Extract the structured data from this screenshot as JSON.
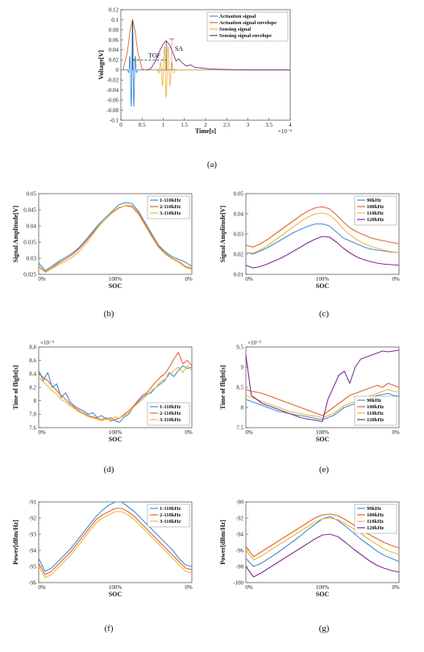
{
  "chart_data": [
    {
      "id": "a",
      "caption": "(a)",
      "type": "line",
      "xlabel": "Time[s]",
      "ylabel": "Voltage[V]",
      "xlim": [
        0,
        0.0004
      ],
      "ylim": [
        -0.1,
        0.12
      ],
      "x_ticks": [
        "0",
        "0.5",
        "1",
        "1.5",
        "2",
        "2.5",
        "3",
        "3.5",
        "4"
      ],
      "x_multiplier": "×10⁻⁴",
      "y_ticks": [
        "-0.1",
        "-0.08",
        "-0.06",
        "-0.04",
        "-0.02",
        "0",
        "0.02",
        "0.04",
        "0.06",
        "0.08",
        "0.1",
        "0.12"
      ],
      "legend_loc": "top-right",
      "annotations": [
        "TOF",
        "SA"
      ],
      "series": [
        {
          "name": "Actuation signal",
          "color": "#3a8fd8",
          "kind": "burst",
          "center": 2.75e-05,
          "width": 8e-06,
          "amp": 0.1,
          "freq": 150000
        },
        {
          "name": "Actuation signal envelope",
          "color": "#e0642a",
          "points": [
            [
              5e-06,
              0
            ],
            [
              1.5e-05,
              0.035
            ],
            [
              2.2e-05,
              0.08
            ],
            [
              2.75e-05,
              0.1
            ],
            [
              3.3e-05,
              0.08
            ],
            [
              4e-05,
              0.035
            ],
            [
              5e-05,
              0.002
            ],
            [
              6e-05,
              0
            ]
          ]
        },
        {
          "name": "Sensing signal",
          "color": "#f2b43c",
          "kind": "burst",
          "center": 0.000107,
          "width": 1.7e-05,
          "amp": 0.055,
          "freq": 110000
        },
        {
          "name": "Sensing signal envelope",
          "color": "#7b2d8e",
          "points": [
            [
              6e-05,
              0
            ],
            [
              7e-05,
              0.002
            ],
            [
              8e-05,
              0.015
            ],
            [
              9e-05,
              0.035
            ],
            [
              0.0001,
              0.052
            ],
            [
              0.000107,
              0.058
            ],
            [
              0.000115,
              0.05
            ],
            [
              0.000125,
              0.03
            ],
            [
              0.00013,
              0.018
            ],
            [
              0.000137,
              0.022
            ],
            [
              0.000145,
              0.014
            ],
            [
              0.000155,
              0.008
            ],
            [
              0.000165,
              0.01
            ],
            [
              0.000175,
              0.005
            ],
            [
              0.00019,
              0.004
            ],
            [
              0.00021,
              0.002
            ],
            [
              0.00025,
              0.001
            ],
            [
              0.0003,
              0
            ],
            [
              0.0004,
              0
            ]
          ]
        }
      ]
    },
    {
      "id": "b",
      "caption": "(b)",
      "type": "line",
      "xlabel": "SOC",
      "ylabel": "Signal Amplitude[V]",
      "ylim": [
        0.025,
        0.05
      ],
      "y_ticks": [
        "0.025",
        "0.03",
        "0.035",
        "0.04",
        "0.045",
        "0.05"
      ],
      "x_ticks": [
        "0%",
        "100%",
        "0%"
      ],
      "legend_loc": "top-right",
      "series": [
        {
          "name": "1-110kHz",
          "color": "#3a8fd8",
          "values": [
            0.0285,
            0.0262,
            0.0275,
            0.029,
            0.0302,
            0.0315,
            0.0332,
            0.0355,
            0.038,
            0.0405,
            0.0425,
            0.0445,
            0.0465,
            0.0472,
            0.047,
            0.0445,
            0.041,
            0.0375,
            0.034,
            0.032,
            0.0305,
            0.0297,
            0.0288,
            0.0275
          ]
        },
        {
          "name": "2-110kHz",
          "color": "#e0642a",
          "values": [
            0.0275,
            0.0258,
            0.027,
            0.0285,
            0.0297,
            0.031,
            0.0328,
            0.035,
            0.0375,
            0.04,
            0.042,
            0.044,
            0.0455,
            0.0463,
            0.0462,
            0.044,
            0.0405,
            0.037,
            0.0337,
            0.0315,
            0.03,
            0.029,
            0.0275,
            0.0268
          ]
        },
        {
          "name": "3-110kHz",
          "color": "#f2b43c",
          "values": [
            0.0272,
            0.0256,
            0.0268,
            0.028,
            0.029,
            0.0302,
            0.032,
            0.0343,
            0.037,
            0.0398,
            0.042,
            0.0442,
            0.0457,
            0.0462,
            0.0458,
            0.0435,
            0.04,
            0.0365,
            0.0333,
            0.0313,
            0.0298,
            0.0288,
            0.0272,
            0.0265
          ]
        }
      ]
    },
    {
      "id": "c",
      "caption": "(c)",
      "type": "line",
      "xlabel": "SOC",
      "ylabel": "Signal Amplitude[V]",
      "ylim": [
        0.01,
        0.05
      ],
      "y_ticks": [
        "0.01",
        "0.02",
        "0.03",
        "0.04",
        "0.05"
      ],
      "x_ticks": [
        "0%",
        "100%",
        "0%"
      ],
      "legend_loc": "top-right",
      "series": [
        {
          "name": "90kHz",
          "color": "#3a8fd8",
          "values": [
            0.021,
            0.02,
            0.0215,
            0.023,
            0.025,
            0.027,
            0.029,
            0.031,
            0.0325,
            0.034,
            0.035,
            0.035,
            0.034,
            0.031,
            0.028,
            0.0265,
            0.025,
            0.0235,
            0.0225,
            0.022,
            0.0215,
            0.021,
            0.0208
          ]
        },
        {
          "name": "100kHz",
          "color": "#e0642a",
          "values": [
            0.0245,
            0.0235,
            0.025,
            0.027,
            0.0295,
            0.032,
            0.0345,
            0.037,
            0.0395,
            0.0415,
            0.043,
            0.0435,
            0.0425,
            0.0395,
            0.036,
            0.033,
            0.031,
            0.0295,
            0.028,
            0.0272,
            0.0265,
            0.0258,
            0.0252
          ]
        },
        {
          "name": "110kHz",
          "color": "#f2b43c",
          "values": [
            0.021,
            0.0205,
            0.022,
            0.024,
            0.0265,
            0.029,
            0.0315,
            0.034,
            0.0365,
            0.0385,
            0.04,
            0.0405,
            0.0395,
            0.0365,
            0.0325,
            0.0295,
            0.027,
            0.0252,
            0.0238,
            0.0228,
            0.0218,
            0.0212,
            0.0207
          ]
        },
        {
          "name": "120kHz",
          "color": "#7b2d8e",
          "values": [
            0.0145,
            0.0132,
            0.0138,
            0.015,
            0.0165,
            0.018,
            0.0198,
            0.0218,
            0.0238,
            0.0258,
            0.0275,
            0.0288,
            0.0285,
            0.026,
            0.023,
            0.0205,
            0.0185,
            0.0172,
            0.0162,
            0.0155,
            0.015,
            0.0148,
            0.0145
          ]
        }
      ]
    },
    {
      "id": "d",
      "caption": "(d)",
      "type": "line",
      "xlabel": "SOC",
      "ylabel": "Time of flight[s]",
      "ylim": [
        7.6,
        8.8
      ],
      "y_ticks": [
        "7.6",
        "7.8",
        "8",
        "8.2",
        "8.4",
        "8.6",
        "8.8"
      ],
      "y_multiplier": "×10⁻⁵",
      "x_ticks": [
        "0%",
        "100%",
        "0%"
      ],
      "legend_loc": "bottom-right",
      "series": [
        {
          "name": "1-110kHz",
          "color": "#3a8fd8",
          "values": [
            8.45,
            8.3,
            8.42,
            8.2,
            8.25,
            8.05,
            8.12,
            7.98,
            7.92,
            7.88,
            7.85,
            7.8,
            7.82,
            7.75,
            7.78,
            7.72,
            7.75,
            7.7,
            7.68,
            7.76,
            7.8,
            7.9,
            7.98,
            8.05,
            8.1,
            8.12,
            8.2,
            8.25,
            8.3,
            8.42,
            8.36,
            8.45,
            8.52,
            8.48,
            8.5
          ]
        },
        {
          "name": "2-110kHz",
          "color": "#e0642a",
          "values": [
            8.4,
            8.35,
            8.3,
            8.22,
            8.15,
            8.08,
            8.02,
            7.95,
            7.9,
            7.85,
            7.82,
            7.78,
            7.76,
            7.74,
            7.72,
            7.75,
            7.7,
            7.72,
            7.74,
            7.8,
            7.85,
            7.92,
            8.0,
            8.08,
            8.12,
            8.2,
            8.28,
            8.35,
            8.4,
            8.5,
            8.62,
            8.72,
            8.55,
            8.6,
            8.52
          ]
        },
        {
          "name": "3-110kHz",
          "color": "#f2b43c",
          "values": [
            8.35,
            8.28,
            8.22,
            8.15,
            8.1,
            8.02,
            7.98,
            7.92,
            7.88,
            7.83,
            7.8,
            7.76,
            7.75,
            7.72,
            7.7,
            7.73,
            7.72,
            7.76,
            7.74,
            7.78,
            7.82,
            7.9,
            7.96,
            8.02,
            8.08,
            8.15,
            8.2,
            8.28,
            8.32,
            8.38,
            8.45,
            8.5,
            8.42,
            8.52,
            8.45
          ]
        }
      ]
    },
    {
      "id": "e",
      "caption": "(e)",
      "type": "line",
      "xlabel": "SOC",
      "ylabel": "Time of flight[s]",
      "ylim": [
        7.5,
        9.5
      ],
      "y_ticks": [
        "7.5",
        "8",
        "8.5",
        "9",
        "9.5"
      ],
      "y_multiplier": "×10⁻⁵",
      "x_ticks": [
        "0%",
        "100%",
        "0%"
      ],
      "legend_loc": "bottom-right",
      "series": [
        {
          "name": "90kHz",
          "color": "#3a8fd8",
          "values": [
            8.2,
            8.15,
            8.1,
            8.05,
            8.0,
            7.95,
            7.9,
            7.88,
            7.85,
            7.82,
            7.8,
            7.78,
            7.75,
            7.72,
            7.7,
            7.75,
            7.8,
            7.9,
            8.0,
            8.05,
            8.1,
            8.15,
            8.2,
            8.25,
            8.3,
            8.32,
            8.35,
            8.3,
            8.28
          ]
        },
        {
          "name": "100kHz",
          "color": "#e0642a",
          "values": [
            8.45,
            8.4,
            8.38,
            8.35,
            8.3,
            8.25,
            8.2,
            8.15,
            8.1,
            8.05,
            8.0,
            7.95,
            7.9,
            7.85,
            7.8,
            7.9,
            8.0,
            8.1,
            8.2,
            8.3,
            8.35,
            8.4,
            8.45,
            8.5,
            8.55,
            8.5,
            8.6,
            8.55,
            8.5
          ]
        },
        {
          "name": "110kHz",
          "color": "#f2b43c",
          "values": [
            8.3,
            8.25,
            8.2,
            8.15,
            8.1,
            8.05,
            8.0,
            7.95,
            7.9,
            7.88,
            7.85,
            7.82,
            7.8,
            7.78,
            7.75,
            7.8,
            7.85,
            7.95,
            8.05,
            8.1,
            8.15,
            8.2,
            8.25,
            8.3,
            8.35,
            8.4,
            8.45,
            8.4,
            8.38
          ]
        },
        {
          "name": "120kHz",
          "color": "#7b2d8e",
          "values": [
            9.3,
            8.3,
            8.2,
            8.1,
            8.05,
            8.0,
            7.95,
            7.9,
            7.85,
            7.8,
            7.75,
            7.72,
            7.7,
            7.68,
            7.65,
            8.2,
            8.5,
            8.8,
            8.9,
            8.6,
            9.0,
            9.2,
            9.25,
            9.3,
            9.35,
            9.4,
            9.38,
            9.4,
            9.42
          ]
        }
      ]
    },
    {
      "id": "f",
      "caption": "(f)",
      "type": "line",
      "xlabel": "SOC",
      "ylabel": "Power[dBm/Hz]",
      "ylim": [
        -96,
        -91
      ],
      "y_ticks": [
        "-96",
        "-95",
        "-94",
        "-93",
        "-92",
        "-91"
      ],
      "x_ticks": [
        "0%",
        "100%",
        "0%"
      ],
      "legend_loc": "top-right",
      "series": [
        {
          "name": "1-110kHz",
          "color": "#3a8fd8",
          "values": [
            -94.5,
            -95.3,
            -95.1,
            -94.7,
            -94.3,
            -93.9,
            -93.4,
            -92.9,
            -92.4,
            -91.9,
            -91.5,
            -91.2,
            -91.0,
            -91.0,
            -91.3,
            -91.6,
            -92.0,
            -92.4,
            -92.8,
            -93.2,
            -93.6,
            -94.0,
            -94.5,
            -94.9,
            -95.0
          ]
        },
        {
          "name": "2-110kHz",
          "color": "#e0642a",
          "values": [
            -94.8,
            -95.5,
            -95.3,
            -94.9,
            -94.5,
            -94.1,
            -93.6,
            -93.1,
            -92.6,
            -92.1,
            -91.8,
            -91.6,
            -91.4,
            -91.4,
            -91.6,
            -91.9,
            -92.3,
            -92.7,
            -93.1,
            -93.5,
            -93.9,
            -94.3,
            -94.7,
            -95.1,
            -95.2
          ]
        },
        {
          "name": "3-110kHz",
          "color": "#f2b43c",
          "values": [
            -95.0,
            -95.7,
            -95.5,
            -95.1,
            -94.7,
            -94.3,
            -93.8,
            -93.3,
            -92.8,
            -92.3,
            -92.0,
            -91.8,
            -91.6,
            -91.6,
            -91.8,
            -92.1,
            -92.5,
            -92.9,
            -93.3,
            -93.7,
            -94.1,
            -94.5,
            -94.9,
            -95.3,
            -95.4
          ]
        }
      ]
    },
    {
      "id": "g",
      "caption": "(g)",
      "type": "line",
      "xlabel": "SOC",
      "ylabel": "Power[dBm/Hz]",
      "ylim": [
        -100,
        -90
      ],
      "y_ticks": [
        "-100",
        "-98",
        "-96",
        "-94",
        "-92",
        "-90"
      ],
      "x_ticks": [
        "0%",
        "100%",
        "0%"
      ],
      "legend_loc": "top-right",
      "series": [
        {
          "name": "90kHz",
          "color": "#3a8fd8",
          "values": [
            -97.0,
            -98.0,
            -97.6,
            -97.0,
            -96.4,
            -95.7,
            -95.0,
            -94.3,
            -93.5,
            -92.8,
            -92.1,
            -91.8,
            -92.3,
            -93.0,
            -93.8,
            -94.6,
            -95.3,
            -96.0,
            -96.6,
            -97.0,
            -97.4
          ]
        },
        {
          "name": "100kHz",
          "color": "#e0642a",
          "values": [
            -95.5,
            -96.8,
            -96.2,
            -95.6,
            -95.0,
            -94.4,
            -93.8,
            -93.2,
            -92.6,
            -92.0,
            -91.6,
            -91.5,
            -91.7,
            -92.2,
            -92.8,
            -93.4,
            -94.0,
            -94.5,
            -95.0,
            -95.4,
            -95.7
          ]
        },
        {
          "name": "110kHz",
          "color": "#f2b43c",
          "values": [
            -96.0,
            -97.2,
            -96.7,
            -96.1,
            -95.5,
            -94.9,
            -94.3,
            -93.7,
            -93.1,
            -92.5,
            -92.1,
            -92.0,
            -92.2,
            -92.7,
            -93.3,
            -93.9,
            -94.6,
            -95.2,
            -95.8,
            -96.2,
            -96.5
          ]
        },
        {
          "name": "120kHz",
          "color": "#7b2d8e",
          "values": [
            -98.0,
            -99.3,
            -98.8,
            -98.2,
            -97.6,
            -97.0,
            -96.4,
            -95.8,
            -95.2,
            -94.6,
            -94.1,
            -94.0,
            -94.3,
            -95.0,
            -95.8,
            -96.5,
            -97.2,
            -97.8,
            -98.2,
            -98.5,
            -98.7
          ]
        }
      ]
    }
  ]
}
